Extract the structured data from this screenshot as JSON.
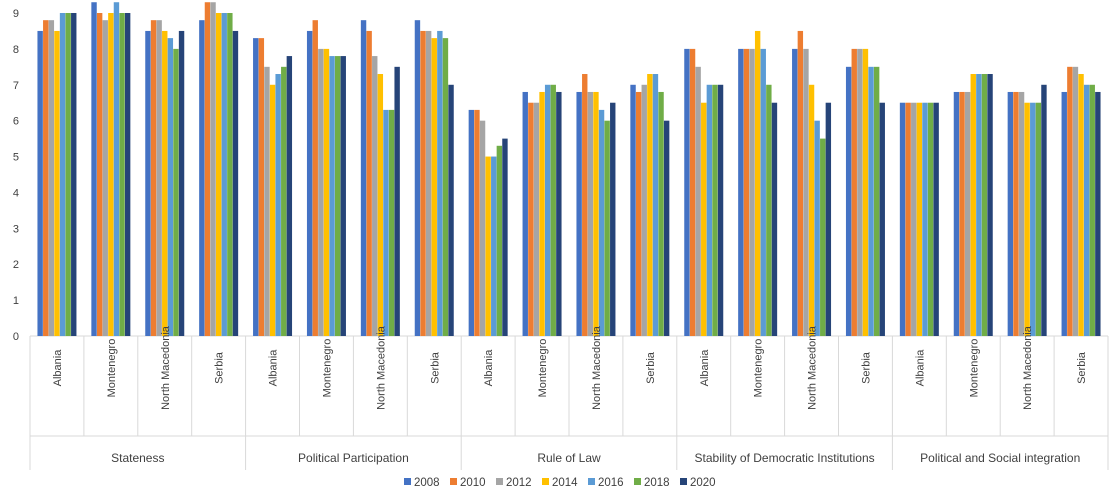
{
  "chart_data": {
    "type": "bar",
    "title": "",
    "xlabel": "",
    "ylabel": "",
    "ylim": [
      0,
      9
    ],
    "yticks": [
      0,
      1,
      2,
      3,
      4,
      5,
      6,
      7,
      8,
      9
    ],
    "grid": false,
    "legend_position": "bottom",
    "groups": [
      "Stateness",
      "Political Participation",
      "Rule of Law",
      "Stability of Democratic Institutions",
      "Political and Social integration"
    ],
    "countries": [
      "Albania",
      "Montenegro",
      "North Macedonia",
      "Serbia"
    ],
    "series": [
      {
        "name": "2008",
        "color": "#4472C4",
        "values": [
          8.5,
          9.3,
          8.5,
          8.8,
          8.3,
          8.5,
          8.8,
          8.8,
          6.3,
          6.8,
          6.8,
          7.0,
          8.0,
          8.0,
          8.0,
          7.5,
          6.5,
          6.8,
          6.8,
          6.8
        ]
      },
      {
        "name": "2010",
        "color": "#ED7D31",
        "values": [
          8.8,
          9.0,
          8.8,
          9.3,
          8.3,
          8.8,
          8.5,
          8.5,
          6.3,
          6.5,
          7.3,
          6.8,
          8.0,
          8.0,
          8.5,
          8.0,
          6.5,
          6.8,
          6.8,
          7.5
        ]
      },
      {
        "name": "2012",
        "color": "#A5A5A5",
        "values": [
          8.8,
          8.8,
          8.8,
          9.3,
          7.5,
          8.0,
          7.8,
          8.5,
          6.0,
          6.5,
          6.8,
          7.0,
          7.5,
          8.0,
          8.0,
          8.0,
          6.5,
          6.8,
          6.8,
          7.5
        ]
      },
      {
        "name": "2014",
        "color": "#FFC000",
        "values": [
          8.5,
          9.0,
          8.5,
          9.0,
          7.0,
          8.0,
          7.3,
          8.3,
          5.0,
          6.8,
          6.8,
          7.3,
          6.5,
          8.5,
          7.0,
          8.0,
          6.5,
          7.3,
          6.5,
          7.3
        ]
      },
      {
        "name": "2016",
        "color": "#5B9BD5",
        "values": [
          9.0,
          9.3,
          8.3,
          9.0,
          7.3,
          7.8,
          6.3,
          8.5,
          5.0,
          7.0,
          6.3,
          7.3,
          7.0,
          8.0,
          6.0,
          7.5,
          6.5,
          7.3,
          6.5,
          7.0
        ]
      },
      {
        "name": "2018",
        "color": "#70AD47",
        "values": [
          9.0,
          9.0,
          8.0,
          9.0,
          7.5,
          7.8,
          6.3,
          8.3,
          5.3,
          7.0,
          6.0,
          6.8,
          7.0,
          7.0,
          5.5,
          7.5,
          6.5,
          7.3,
          6.5,
          7.0
        ]
      },
      {
        "name": "2020",
        "color": "#264478",
        "values": [
          9.0,
          9.0,
          8.5,
          8.5,
          7.8,
          7.8,
          7.5,
          7.0,
          5.5,
          6.8,
          6.5,
          6.0,
          7.0,
          6.5,
          6.5,
          6.5,
          6.5,
          7.3,
          7.0,
          6.8
        ]
      }
    ]
  }
}
